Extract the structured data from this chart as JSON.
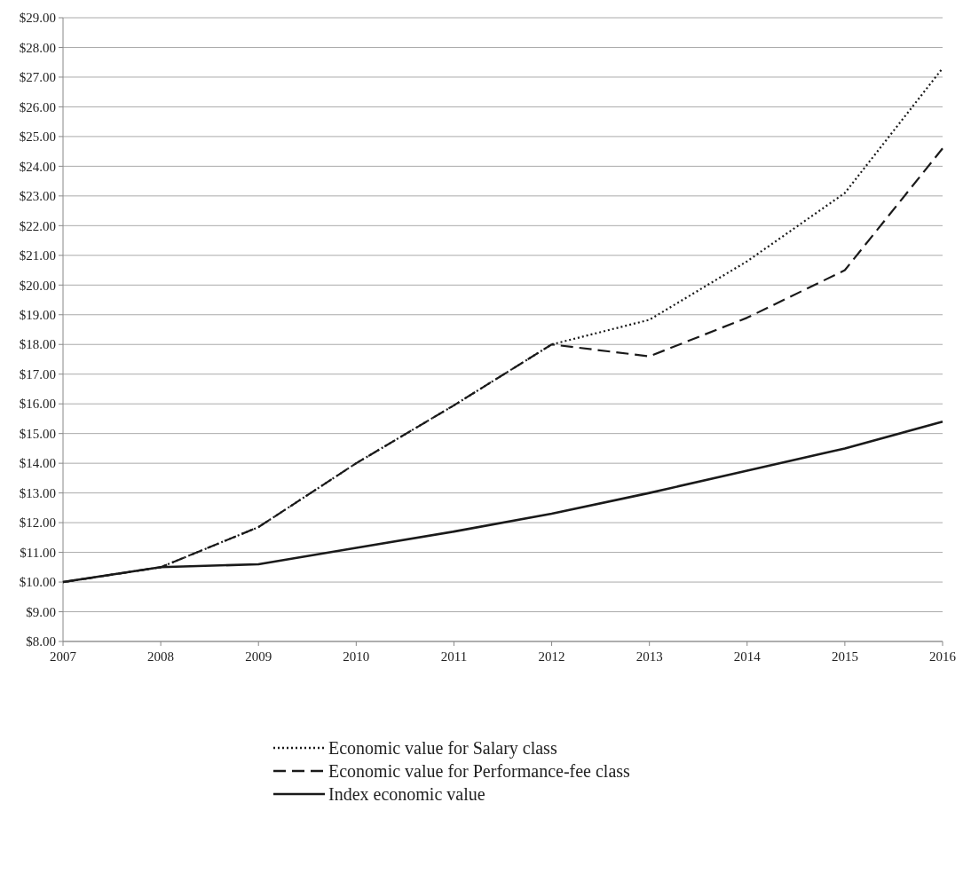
{
  "chart_data": {
    "type": "line",
    "x": [
      2007,
      2008,
      2009,
      2010,
      2011,
      2012,
      2013,
      2014,
      2015,
      2016
    ],
    "series": [
      {
        "name": "Economic value for Salary class",
        "color": "#1a1a1a",
        "line_style": "dotted",
        "values": [
          10.0,
          10.5,
          11.85,
          14.0,
          15.95,
          18.0,
          18.83,
          20.8,
          23.1,
          27.3
        ]
      },
      {
        "name": "Economic value for Performance-fee class",
        "color": "#1a1a1a",
        "line_style": "dashed",
        "values": [
          10.0,
          10.5,
          11.85,
          14.0,
          15.95,
          18.0,
          17.6,
          18.9,
          20.5,
          24.6
        ]
      },
      {
        "name": "Index economic value",
        "color": "#1a1a1a",
        "line_style": "solid",
        "values": [
          10.0,
          10.5,
          10.6,
          11.15,
          11.7,
          12.3,
          13.0,
          13.75,
          14.5,
          15.4
        ]
      }
    ],
    "xlim": [
      2007,
      2016
    ],
    "xticks": [
      2007,
      2008,
      2009,
      2010,
      2011,
      2012,
      2013,
      2014,
      2015,
      2016
    ],
    "ylim": [
      8,
      29
    ],
    "yticks": [
      {
        "value": 8,
        "label": "$8.00"
      },
      {
        "value": 9,
        "label": "$9.00"
      },
      {
        "value": 10,
        "label": "$10.00"
      },
      {
        "value": 11,
        "label": "$11.00"
      },
      {
        "value": 12,
        "label": "$12.00"
      },
      {
        "value": 13,
        "label": "$13.00"
      },
      {
        "value": 14,
        "label": "$14.00"
      },
      {
        "value": 15,
        "label": "$15.00"
      },
      {
        "value": 16,
        "label": "$16.00"
      },
      {
        "value": 17,
        "label": "$17.00"
      },
      {
        "value": 18,
        "label": "$18.00"
      },
      {
        "value": 19,
        "label": "$19.00"
      },
      {
        "value": 20,
        "label": "$20.00"
      },
      {
        "value": 21,
        "label": "$21.00"
      },
      {
        "value": 22,
        "label": "$22.00"
      },
      {
        "value": 23,
        "label": "$23.00"
      },
      {
        "value": 24,
        "label": "$24.00"
      },
      {
        "value": 25,
        "label": "$25.00"
      },
      {
        "value": 26,
        "label": "$26.00"
      },
      {
        "value": 27,
        "label": "$27.00"
      },
      {
        "value": 28,
        "label": "$28.00"
      },
      {
        "value": 29,
        "label": "$29.00"
      }
    ],
    "grid": "y",
    "legend": "bottom",
    "marker": "none"
  }
}
